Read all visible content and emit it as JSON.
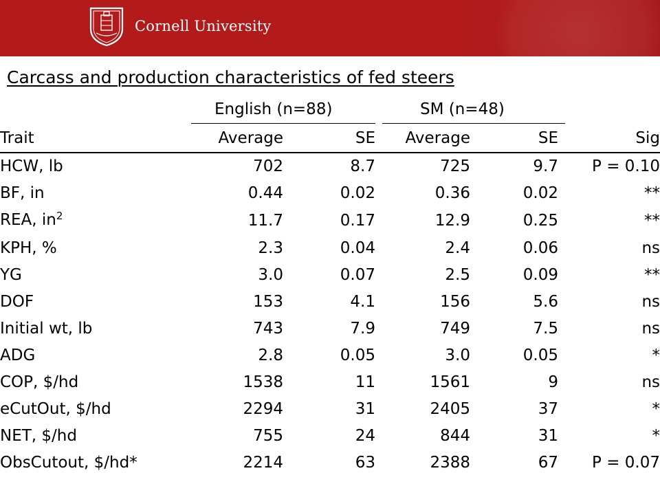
{
  "header": {
    "brand": "Cornell University",
    "bar_color": "#b31b1b"
  },
  "title": "Carcass and production characteristics of fed steers",
  "groups": [
    {
      "label": "English (n=88)"
    },
    {
      "label": "SM (n=48)"
    }
  ],
  "columns": [
    "Trait",
    "Average",
    "SE",
    "Average",
    "SE",
    "Sig"
  ],
  "rows": [
    {
      "trait": "HCW, lb",
      "eng_avg": "702",
      "eng_se": "8.7",
      "sm_avg": "725",
      "sm_se": "9.7",
      "sig": "P = 0.10"
    },
    {
      "trait": "BF, in",
      "eng_avg": "0.44",
      "eng_se": "0.02",
      "sm_avg": "0.36",
      "sm_se": "0.02",
      "sig": "**"
    },
    {
      "trait": "REA, in",
      "trait_sup": "2",
      "eng_avg": "11.7",
      "eng_se": "0.17",
      "sm_avg": "12.9",
      "sm_se": "0.25",
      "sig": "**"
    },
    {
      "trait": "KPH, %",
      "eng_avg": "2.3",
      "eng_se": "0.04",
      "sm_avg": "2.4",
      "sm_se": "0.06",
      "sig": "ns"
    },
    {
      "trait": "YG",
      "eng_avg": "3.0",
      "eng_se": "0.07",
      "sm_avg": "2.5",
      "sm_se": "0.09",
      "sig": "**"
    },
    {
      "trait": "DOF",
      "eng_avg": "153",
      "eng_se": "4.1",
      "sm_avg": "156",
      "sm_se": "5.6",
      "sig": "ns"
    },
    {
      "trait": "Initial wt, lb",
      "eng_avg": "743",
      "eng_se": "7.9",
      "sm_avg": "749",
      "sm_se": "7.5",
      "sig": "ns"
    },
    {
      "trait": "ADG",
      "eng_avg": "2.8",
      "eng_se": "0.05",
      "sm_avg": "3.0",
      "sm_se": "0.05",
      "sig": "*"
    },
    {
      "trait": "COP, $/hd",
      "eng_avg": "1538",
      "eng_se": "11",
      "sm_avg": "1561",
      "sm_se": "9",
      "sig": "ns"
    },
    {
      "trait": "eCutOut, $/hd",
      "eng_avg": "2294",
      "eng_se": "31",
      "sm_avg": "2405",
      "sm_se": "37",
      "sig": "*"
    },
    {
      "trait": "NET, $/hd",
      "eng_avg": "755",
      "eng_se": "24",
      "sm_avg": "844",
      "sm_se": "31",
      "sig": "*"
    },
    {
      "trait": "ObsCutout, $/hd*",
      "eng_avg": "2214",
      "eng_se": "63",
      "sm_avg": "2388",
      "sm_se": "67",
      "sig": "P = 0.07"
    }
  ]
}
